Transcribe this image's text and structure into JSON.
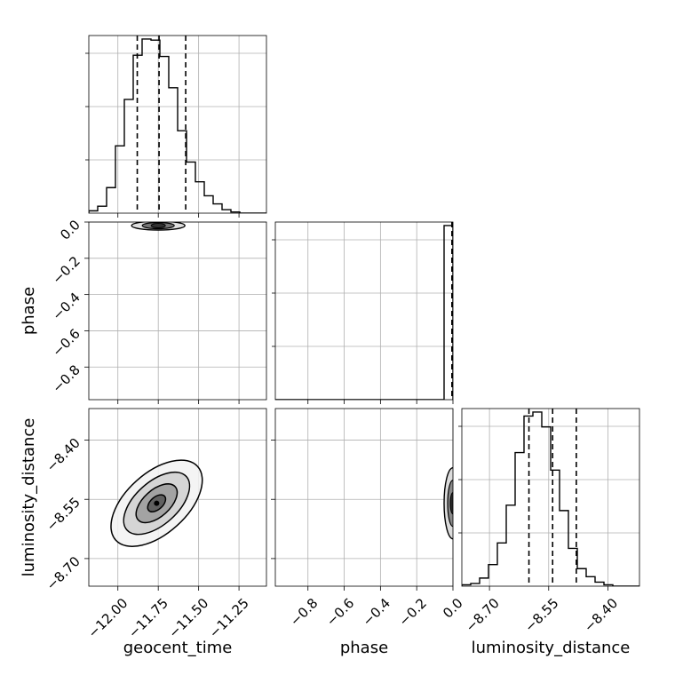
{
  "chart_data": {
    "type": "corner",
    "parameters": [
      "geocent_time",
      "phase",
      "luminosity_distance"
    ],
    "quantile_style": "dashed",
    "hist_bins": 20,
    "geocent_time": {
      "range": [
        -12.18,
        -11.08
      ],
      "ticks": [
        -12.0,
        -11.75,
        -11.5,
        -11.25
      ],
      "tick_labels": [
        "−12.00",
        "−11.75",
        "−11.50",
        "−11.25"
      ],
      "quantiles": [
        -11.88,
        -11.745,
        -11.58
      ],
      "hist_counts": [
        2,
        6,
        22,
        58,
        98,
        136,
        150,
        149,
        135,
        108,
        71,
        44,
        27,
        15,
        8,
        3,
        1,
        0,
        0,
        0
      ]
    },
    "phase": {
      "range": [
        -0.98,
        0.0
      ],
      "ticks": [
        -0.8,
        -0.6,
        -0.4,
        -0.2,
        0.0
      ],
      "tick_labels": [
        "−0.8",
        "−0.6",
        "−0.4",
        "−0.2",
        "0.0"
      ],
      "quantiles": [
        0.0,
        0.0,
        0.0
      ],
      "hist_counts": [
        0,
        0,
        0,
        0,
        0,
        0,
        0,
        0,
        0,
        0,
        0,
        0,
        0,
        0,
        0,
        0,
        0,
        0,
        0,
        172
      ]
    },
    "luminosity_distance": {
      "range": [
        -8.77,
        -8.32
      ],
      "ticks": [
        -8.7,
        -8.55,
        -8.4
      ],
      "tick_labels": [
        "−8.70",
        "−8.55",
        "−8.40"
      ],
      "quantiles": [
        -8.6,
        -8.54,
        -8.48
      ],
      "hist_counts": [
        1,
        2,
        6,
        16,
        32,
        60,
        99,
        126,
        129,
        118,
        86,
        56,
        28,
        13,
        7,
        3,
        1,
        0,
        0,
        0
      ]
    },
    "scatter_samples": {
      "geocent_vs_phase_center": [
        -11.75,
        -0.01
      ],
      "geocent_vs_lumdist_center": [
        -11.77,
        -8.56
      ],
      "geocent_vs_lumdist_correlation": 0.6,
      "geocent_vs_lumdist_sigma": [
        0.11,
        0.055
      ],
      "lumdist_sigma_given_phase": 0.055
    }
  }
}
